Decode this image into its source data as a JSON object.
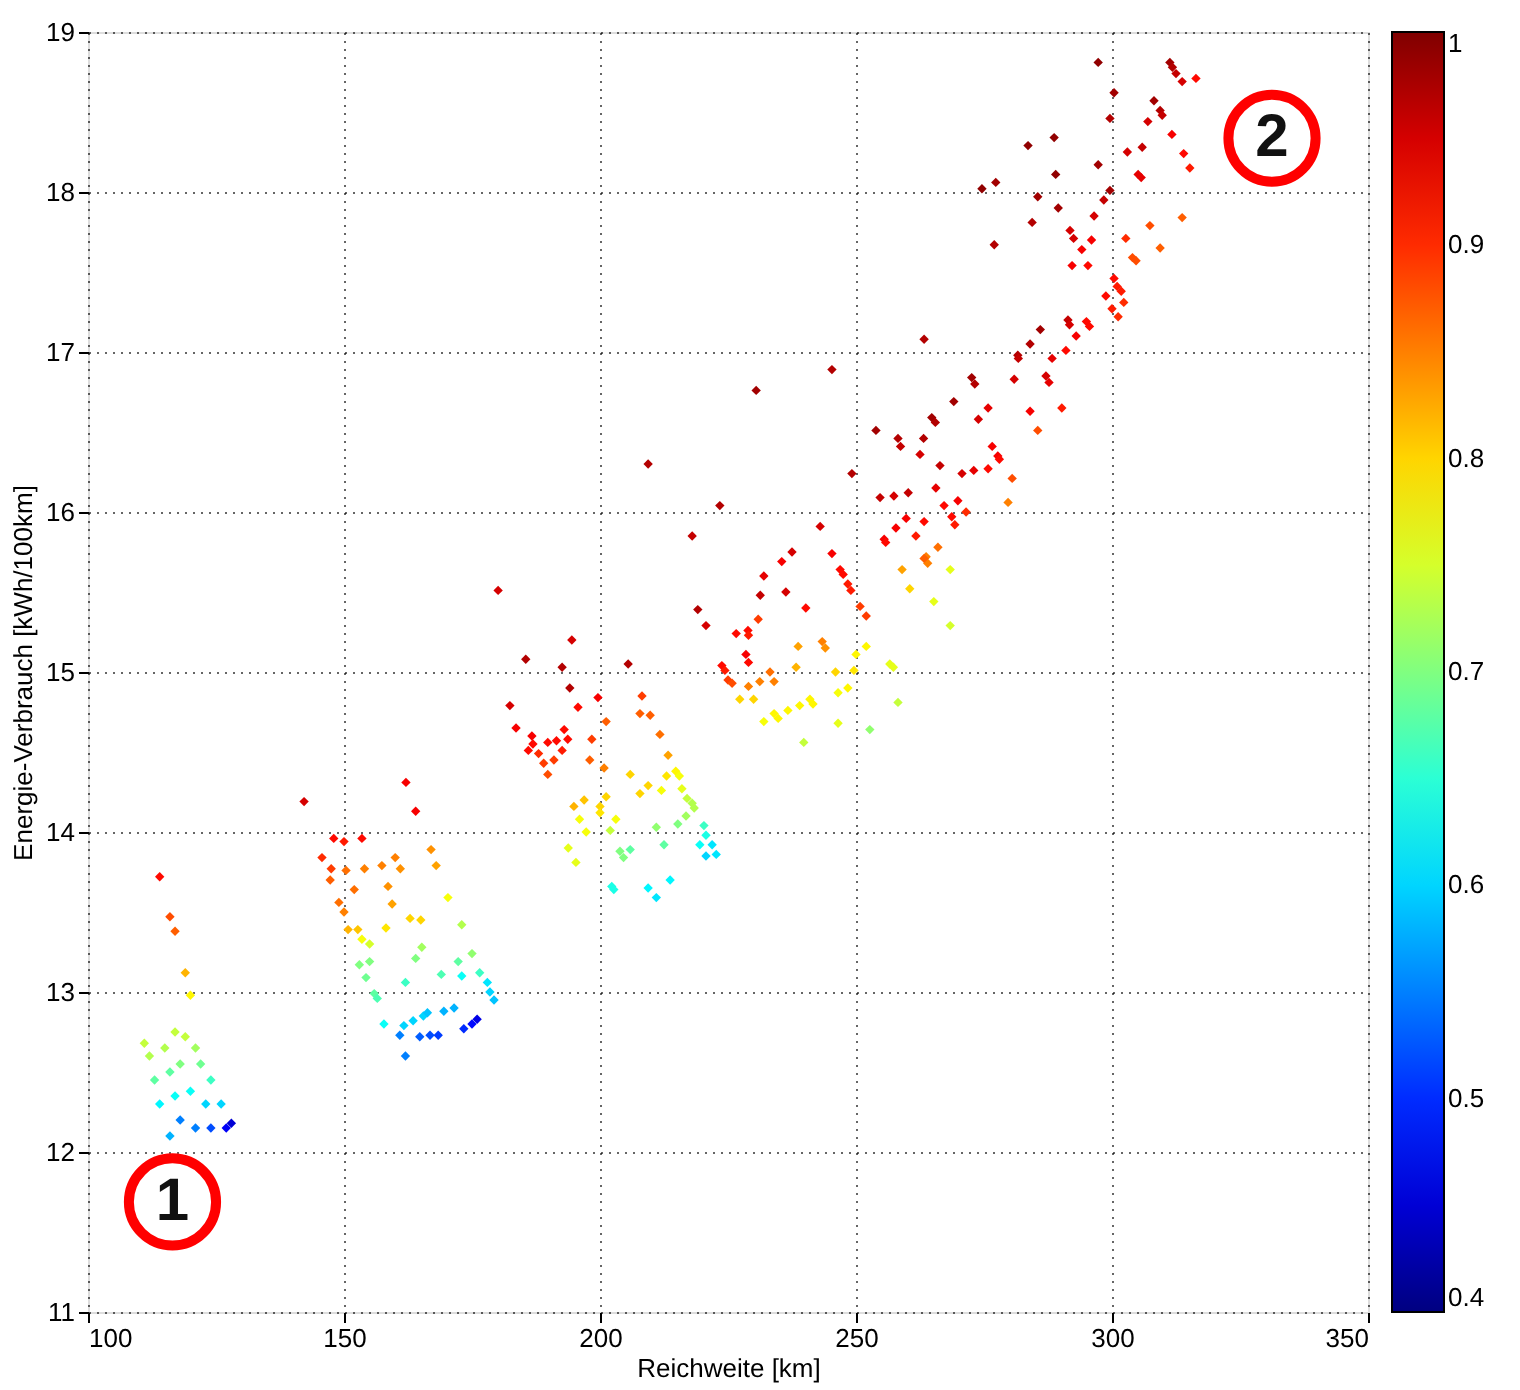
{
  "chart_data": {
    "type": "scatter",
    "xlabel": "Reichweite [km]",
    "ylabel": "Energie-Verbrauch [kWh/100km]",
    "xlim": [
      100,
      350
    ],
    "xticks": [
      100,
      150,
      200,
      250,
      300,
      350
    ],
    "ylim": [
      11,
      19
    ],
    "yticks": [
      11,
      12,
      13,
      14,
      15,
      16,
      17,
      18,
      19
    ],
    "clim": [
      0.4,
      1
    ],
    "cticks": [
      0.4,
      0.5,
      0.6,
      0.7,
      0.8,
      0.9,
      1
    ],
    "grid": true,
    "marker": "diamond",
    "annotations": [
      "1",
      "2"
    ],
    "x": [
      114,
      116,
      117,
      119,
      120,
      111,
      112,
      115,
      117,
      119,
      121,
      113,
      116,
      118,
      122,
      124,
      114,
      117,
      120,
      123,
      126,
      118,
      121,
      124,
      127,
      128,
      116,
      142.2,
      148,
      150,
      153.5,
      162.1,
      164,
      145.7,
      147.5,
      150.4,
      154,
      157.4,
      160,
      161,
      167,
      168,
      147.3,
      152,
      158.6,
      149,
      150,
      159.4,
      150.8,
      152.7,
      158.2,
      162.9,
      165,
      170.3,
      153.5,
      155,
      173,
      165.2,
      153,
      155,
      164,
      175,
      154.3,
      162,
      169,
      172.3,
      176.5,
      155.9,
      156.5,
      173,
      178,
      178.5,
      179.3,
      157.8,
      161.7,
      163.5,
      165.5,
      166.3,
      169.5,
      171.5,
      160.9,
      164.8,
      166.8,
      168.4,
      173.4,
      175,
      176,
      162,
      180.1,
      185.5,
      192.6,
      194.5,
      194.1,
      182.4,
      195.7,
      183.6,
      186.7,
      186,
      186.9,
      189.8,
      191.5,
      193,
      193.7,
      192.6,
      188,
      191,
      189,
      189.8,
      205.5,
      219.1,
      220.7,
      199.6,
      208.2,
      201.2,
      207.8,
      209.8,
      211.7,
      198.4,
      198,
      200.8,
      213.3,
      205.9,
      213,
      214.8,
      215.5,
      209.4,
      207.8,
      212,
      216,
      201.2,
      194.9,
      196.9,
      200,
      200,
      203.1,
      217,
      218,
      218.4,
      216.8,
      196,
      197.3,
      202,
      211,
      215.2,
      220.3,
      220.7,
      193.8,
      195.3,
      203.9,
      204.6,
      205.9,
      212.5,
      219.5,
      221.9,
      222.7,
      220.7,
      202.3,
      202.7,
      209.4,
      213.7,
      211,
      209.4,
      230.5,
      245.3,
      263.3,
      223.4,
      218,
      243,
      237.5,
      235.5,
      232,
      231.3,
      236.3,
      240.2,
      245.3,
      246.9,
      247.5,
      248.4,
      249,
      250.8,
      252,
      226.6,
      228.9,
      229,
      230.9,
      228.5,
      229,
      223.8,
      224.4,
      225,
      225.8,
      229,
      231.2,
      233.2,
      234,
      227.3,
      230,
      238.7,
      238.3,
      243.4,
      244,
      250,
      252,
      246,
      248.4,
      246.5,
      249.6,
      256.6,
      257.3,
      258.2,
      252.7,
      246.5,
      239.8,
      232,
      234,
      234.8,
      236.7,
      239,
      241,
      241.6,
      259,
      260.5,
      268.4,
      265.2,
      268.4,
      263.7,
      266,
      264,
      311.3,
      311.8,
      312.5,
      313.7,
      316.4,
      297.3,
      300.4,
      299.6,
      308.2,
      309.4,
      309.8,
      307,
      311.7,
      314,
      315.2,
      305.9,
      303,
      305.1,
      305.7,
      297.3,
      299.6,
      298.4,
      296.5,
      283.6,
      288.7,
      289,
      274.6,
      277.3,
      285.5,
      289.5,
      284.4,
      277,
      291.8,
      292.5,
      294.1,
      296,
      292.2,
      295.3,
      302.7,
      307.4,
      309.4,
      313.7,
      304,
      304.7,
      300.4,
      301,
      301.8,
      302.3,
      298.8,
      300,
      301.2,
      286,
      284,
      291.4,
      291.7,
      295,
      295.6,
      293,
      291,
      281.6,
      281.7,
      288.3,
      280.9,
      287.1,
      287.7,
      290.2,
      284,
      285.5,
      272.6,
      273.2,
      269.1,
      264.8,
      265.5,
      253.9,
      258.2,
      258.7,
      263.2,
      262.5,
      273.9,
      275.8,
      276.6,
      277.7,
      278,
      275.8,
      273,
      270.7,
      266.4,
      280.5,
      265.6,
      269.9,
      267.2,
      268.7,
      269.3,
      271.5,
      254.7,
      257.4,
      260.2,
      249.2,
      257.8,
      255.5,
      255.8,
      259.8,
      261.7,
      263.3,
      263.3,
      279.7
    ],
    "values": [
      13.72,
      13.47,
      13.38,
      13.12,
      12.98,
      12.68,
      12.6,
      12.65,
      12.75,
      12.72,
      12.65,
      12.45,
      12.5,
      12.55,
      12.55,
      12.45,
      12.3,
      12.35,
      12.38,
      12.3,
      12.3,
      12.2,
      12.15,
      12.15,
      12.15,
      12.18,
      12.1,
      14.19,
      13.96,
      13.94,
      13.96,
      14.31,
      14.13,
      13.84,
      13.77,
      13.76,
      13.77,
      13.79,
      13.84,
      13.77,
      13.89,
      13.79,
      13.7,
      13.64,
      13.66,
      13.56,
      13.5,
      13.55,
      13.39,
      13.39,
      13.4,
      13.46,
      13.45,
      13.59,
      13.33,
      13.3,
      13.42,
      13.28,
      13.17,
      13.19,
      13.21,
      13.24,
      13.09,
      13.06,
      13.11,
      13.19,
      13.12,
      12.99,
      12.96,
      13.1,
      13.06,
      13.0,
      12.95,
      12.8,
      12.79,
      12.82,
      12.85,
      12.87,
      12.88,
      12.9,
      12.73,
      12.72,
      12.73,
      12.73,
      12.77,
      12.8,
      12.83,
      12.6,
      15.51,
      15.08,
      15.03,
      15.2,
      14.9,
      14.79,
      14.78,
      14.65,
      14.6,
      14.51,
      14.55,
      14.56,
      14.57,
      14.64,
      14.58,
      14.51,
      14.49,
      14.45,
      14.43,
      14.36,
      15.05,
      15.39,
      15.29,
      14.84,
      14.85,
      14.69,
      14.74,
      14.73,
      14.61,
      14.58,
      14.45,
      14.4,
      14.48,
      14.36,
      14.35,
      14.38,
      14.35,
      14.29,
      14.24,
      14.26,
      14.27,
      14.22,
      14.16,
      14.2,
      14.16,
      14.12,
      14.08,
      14.21,
      14.18,
      14.15,
      14.1,
      14.08,
      14.0,
      14.01,
      14.03,
      14.05,
      14.04,
      13.98,
      13.9,
      13.81,
      13.88,
      13.84,
      13.89,
      13.92,
      13.92,
      13.92,
      13.86,
      13.85,
      13.66,
      13.64,
      13.65,
      13.7,
      13.59,
      16.3,
      16.76,
      16.89,
      17.08,
      16.04,
      15.85,
      15.91,
      15.75,
      15.69,
      15.6,
      15.48,
      15.5,
      15.4,
      15.74,
      15.64,
      15.61,
      15.55,
      15.51,
      15.41,
      15.35,
      15.24,
      15.26,
      15.23,
      15.33,
      15.11,
      15.06,
      15.04,
      15.01,
      14.95,
      14.93,
      14.91,
      14.94,
      15.0,
      14.94,
      14.83,
      14.83,
      15.16,
      15.03,
      15.19,
      15.15,
      15.11,
      15.16,
      15.0,
      14.9,
      14.87,
      15.01,
      15.05,
      15.03,
      14.81,
      14.64,
      14.68,
      14.56,
      14.69,
      14.74,
      14.71,
      14.76,
      14.79,
      14.83,
      14.8,
      15.64,
      15.52,
      15.64,
      15.44,
      15.29,
      15.72,
      15.78,
      15.68,
      18.81,
      18.78,
      18.74,
      18.69,
      18.71,
      18.81,
      18.62,
      18.46,
      18.57,
      18.51,
      18.48,
      18.44,
      18.36,
      18.24,
      18.15,
      18.28,
      18.25,
      18.11,
      18.09,
      18.17,
      18.01,
      17.95,
      17.85,
      18.29,
      18.34,
      18.11,
      18.02,
      18.06,
      17.97,
      17.9,
      17.81,
      17.67,
      17.76,
      17.71,
      17.64,
      17.7,
      17.54,
      17.54,
      17.71,
      17.79,
      17.65,
      17.84,
      17.59,
      17.57,
      17.46,
      17.41,
      17.38,
      17.31,
      17.35,
      17.27,
      17.22,
      17.14,
      17.05,
      17.2,
      17.17,
      17.19,
      17.16,
      17.1,
      17.01,
      16.98,
      16.96,
      16.96,
      16.83,
      16.85,
      16.81,
      16.65,
      16.63,
      16.51,
      16.84,
      16.8,
      16.69,
      16.59,
      16.56,
      16.51,
      16.46,
      16.41,
      16.46,
      16.36,
      16.58,
      16.65,
      16.41,
      16.35,
      16.33,
      16.27,
      16.26,
      16.24,
      16.29,
      16.21,
      16.15,
      16.07,
      16.04,
      15.97,
      15.92,
      16.0,
      16.09,
      16.1,
      16.12,
      16.24,
      15.9,
      15.83,
      15.81,
      15.96,
      15.85,
      15.94,
      15.71,
      16.06
    ],
    "cvalues": [
      0.92,
      0.88,
      0.87,
      0.82,
      0.78,
      0.74,
      0.73,
      0.73,
      0.74,
      0.74,
      0.72,
      0.68,
      0.68,
      0.7,
      0.69,
      0.66,
      0.62,
      0.63,
      0.63,
      0.6,
      0.6,
      0.55,
      0.55,
      0.52,
      0.47,
      0.45,
      0.58,
      0.95,
      0.92,
      0.91,
      0.92,
      0.93,
      0.93,
      0.9,
      0.89,
      0.86,
      0.85,
      0.85,
      0.85,
      0.84,
      0.84,
      0.83,
      0.87,
      0.86,
      0.84,
      0.86,
      0.85,
      0.83,
      0.82,
      0.81,
      0.79,
      0.8,
      0.8,
      0.77,
      0.77,
      0.75,
      0.73,
      0.72,
      0.7,
      0.7,
      0.7,
      0.71,
      0.69,
      0.66,
      0.67,
      0.68,
      0.66,
      0.68,
      0.67,
      0.63,
      0.61,
      0.6,
      0.59,
      0.63,
      0.6,
      0.6,
      0.6,
      0.59,
      0.58,
      0.58,
      0.55,
      0.53,
      0.52,
      0.51,
      0.5,
      0.48,
      0.46,
      0.55,
      0.95,
      0.97,
      0.97,
      0.95,
      0.97,
      0.95,
      0.92,
      0.93,
      0.93,
      0.92,
      0.92,
      0.92,
      0.92,
      0.92,
      0.92,
      0.91,
      0.9,
      0.89,
      0.89,
      0.88,
      0.97,
      0.97,
      0.95,
      0.93,
      0.89,
      0.87,
      0.87,
      0.87,
      0.86,
      0.89,
      0.87,
      0.85,
      0.83,
      0.8,
      0.79,
      0.78,
      0.77,
      0.8,
      0.8,
      0.77,
      0.76,
      0.8,
      0.82,
      0.81,
      0.8,
      0.79,
      0.77,
      0.74,
      0.73,
      0.73,
      0.72,
      0.77,
      0.77,
      0.74,
      0.71,
      0.7,
      0.66,
      0.64,
      0.76,
      0.76,
      0.7,
      0.7,
      0.68,
      0.68,
      0.63,
      0.61,
      0.61,
      0.6,
      0.64,
      0.64,
      0.62,
      0.62,
      0.61,
      0.97,
      0.98,
      0.97,
      0.97,
      0.97,
      0.96,
      0.95,
      0.95,
      0.93,
      0.94,
      0.96,
      0.95,
      0.92,
      0.93,
      0.92,
      0.92,
      0.91,
      0.91,
      0.89,
      0.89,
      0.92,
      0.92,
      0.91,
      0.89,
      0.93,
      0.92,
      0.92,
      0.91,
      0.89,
      0.88,
      0.85,
      0.85,
      0.86,
      0.85,
      0.8,
      0.8,
      0.83,
      0.82,
      0.85,
      0.84,
      0.78,
      0.78,
      0.8,
      0.78,
      0.77,
      0.79,
      0.76,
      0.76,
      0.74,
      0.71,
      0.76,
      0.74,
      0.77,
      0.78,
      0.78,
      0.78,
      0.78,
      0.78,
      0.78,
      0.83,
      0.8,
      0.76,
      0.76,
      0.75,
      0.85,
      0.86,
      0.85,
      0.98,
      0.97,
      0.96,
      0.95,
      0.92,
      0.99,
      0.98,
      0.97,
      0.98,
      0.97,
      0.96,
      0.95,
      0.93,
      0.92,
      0.91,
      0.96,
      0.95,
      0.94,
      0.94,
      0.98,
      0.98,
      0.96,
      0.95,
      0.99,
      0.99,
      0.99,
      0.99,
      0.98,
      0.98,
      0.98,
      0.97,
      0.97,
      0.95,
      0.95,
      0.93,
      0.93,
      0.93,
      0.92,
      0.9,
      0.88,
      0.87,
      0.87,
      0.88,
      0.88,
      0.92,
      0.91,
      0.91,
      0.9,
      0.92,
      0.91,
      0.9,
      0.98,
      0.97,
      0.96,
      0.95,
      0.92,
      0.92,
      0.93,
      0.92,
      0.97,
      0.96,
      0.94,
      0.95,
      0.95,
      0.94,
      0.91,
      0.93,
      0.88,
      0.98,
      0.97,
      0.98,
      0.98,
      0.97,
      0.98,
      0.97,
      0.96,
      0.97,
      0.95,
      0.95,
      0.94,
      0.93,
      0.93,
      0.92,
      0.92,
      0.94,
      0.95,
      0.96,
      0.88,
      0.94,
      0.93,
      0.92,
      0.92,
      0.91,
      0.9,
      0.96,
      0.95,
      0.96,
      0.97,
      0.93,
      0.93,
      0.92,
      0.93,
      0.91,
      0.92,
      0.87,
      0.85
    ]
  }
}
